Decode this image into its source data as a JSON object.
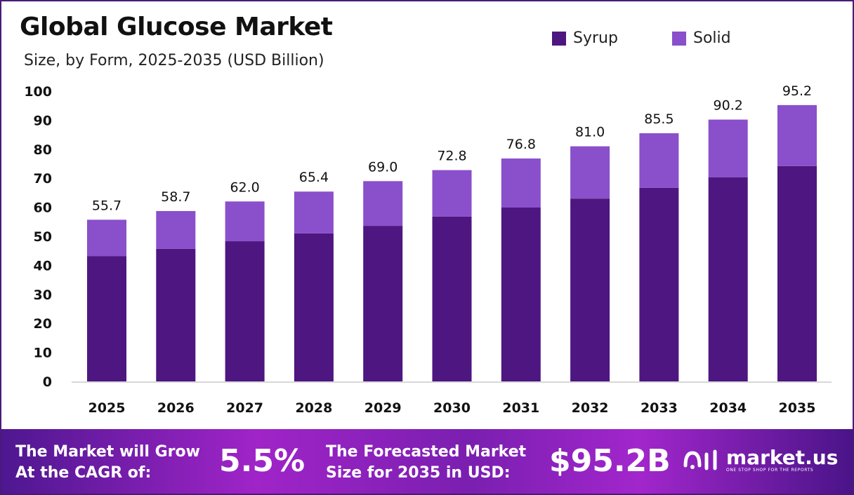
{
  "chart_data": {
    "type": "stacked-bar",
    "title": "Global Glucose Market",
    "subtitle": "Size, by Form, 2025-2035 (USD Billion)",
    "categories": [
      "2025",
      "2026",
      "2027",
      "2028",
      "2029",
      "2030",
      "2031",
      "2032",
      "2033",
      "2034",
      "2035"
    ],
    "series": [
      {
        "name": "Syrup",
        "color": "#4e1680",
        "values": [
          43.2,
          45.7,
          48.3,
          51.0,
          53.6,
          56.8,
          59.9,
          63.0,
          66.7,
          70.3,
          74.2
        ]
      },
      {
        "name": "Solid",
        "color": "#8a4fcb",
        "values": [
          12.5,
          13.0,
          13.7,
          14.4,
          15.4,
          16.0,
          16.9,
          18.0,
          18.8,
          19.9,
          21.0
        ]
      }
    ],
    "totals": [
      "55.7",
      "58.7",
      "62.0",
      "65.4",
      "69.0",
      "72.8",
      "76.8",
      "81.0",
      "85.5",
      "90.2",
      "95.2"
    ],
    "ylim": [
      0,
      100
    ],
    "yticks": [
      "0",
      "10",
      "20",
      "30",
      "40",
      "50",
      "60",
      "70",
      "80",
      "90",
      "100"
    ],
    "legend_position": "top-right",
    "grid": false
  },
  "footer": {
    "cagr_label_1": "The Market will Grow",
    "cagr_label_2": "At the CAGR of:",
    "cagr_value": "5.5%",
    "forecast_label_1": "The Forecasted Market",
    "forecast_label_2": "Size for 2035 in USD:",
    "forecast_value": "$95.2B",
    "logo_text": "market.us",
    "logo_tagline": "ONE STOP SHOP FOR THE REPORTS"
  }
}
